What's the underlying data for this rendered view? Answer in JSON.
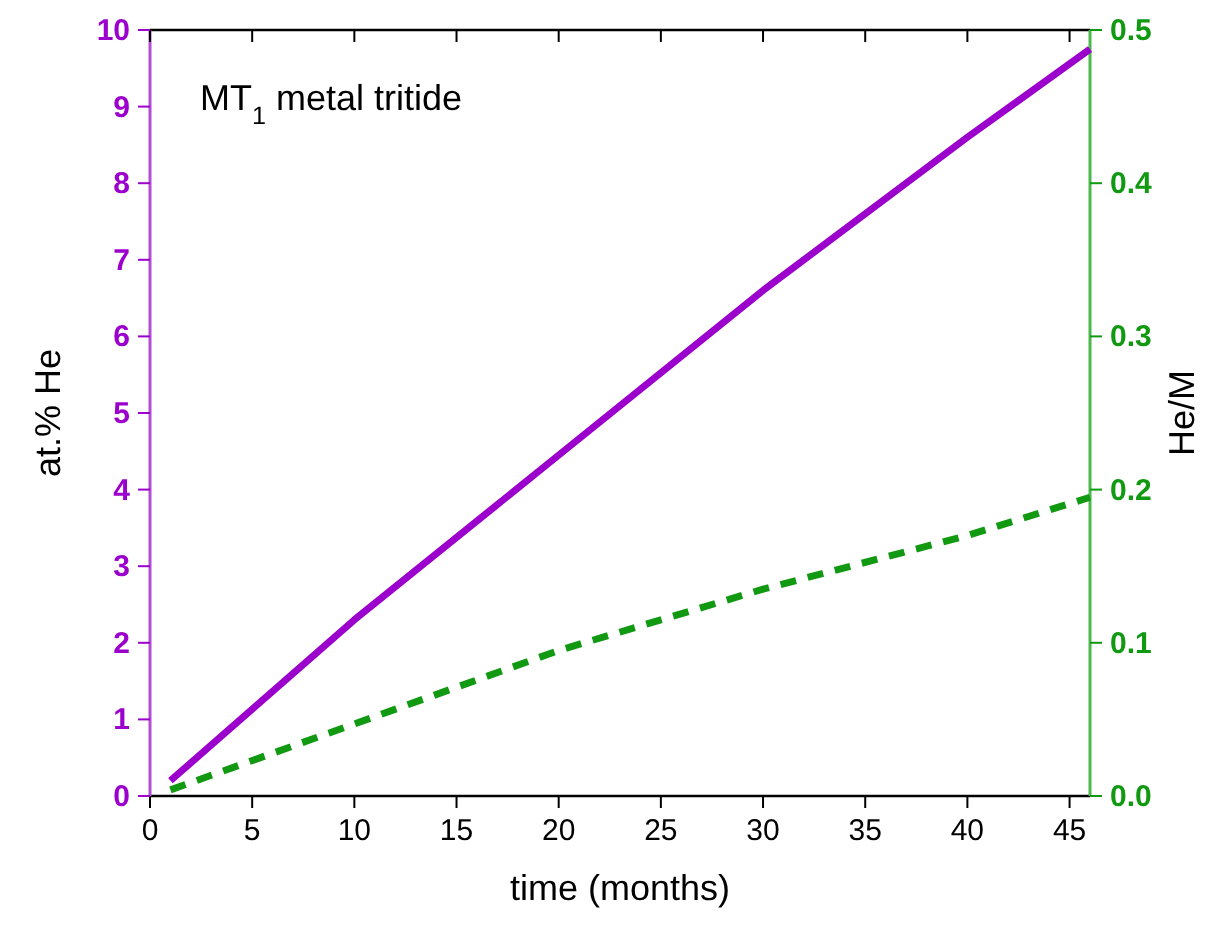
{
  "chart_data": {
    "type": "line",
    "xlabel": "time (months)",
    "ylabel": "at.% He",
    "y2label": "He/M",
    "annotations": [
      "MT$_{1}$ metal tritide"
    ],
    "xlim": [
      0,
      46
    ],
    "xticks": [
      0,
      5,
      10,
      15,
      20,
      25,
      30,
      35,
      40,
      45
    ],
    "ylim": [
      0,
      10
    ],
    "yticks": [
      0,
      1,
      2,
      3,
      4,
      5,
      6,
      7,
      8,
      9,
      10
    ],
    "y2lim": [
      0,
      0.5
    ],
    "y2ticks": [
      {
        "value": 0,
        "label": "0.0"
      },
      0.1,
      0.2,
      0.3,
      0.4,
      0.5
    ],
    "grid": false,
    "series": [
      {
        "color": "#9b00cc",
        "x": [
          1,
          10,
          20,
          30,
          40,
          46
        ],
        "values": [
          0.2,
          2.3,
          4.45,
          6.6,
          8.6,
          9.75
        ],
        "line_style": "solid"
      },
      {
        "color": "#119911",
        "x": [
          1,
          10,
          20,
          30,
          40,
          46
        ],
        "values": [
          0.004,
          0.047,
          0.095,
          0.135,
          0.17,
          0.195
        ],
        "axis": "y2",
        "line_style": "dashed"
      }
    ]
  }
}
